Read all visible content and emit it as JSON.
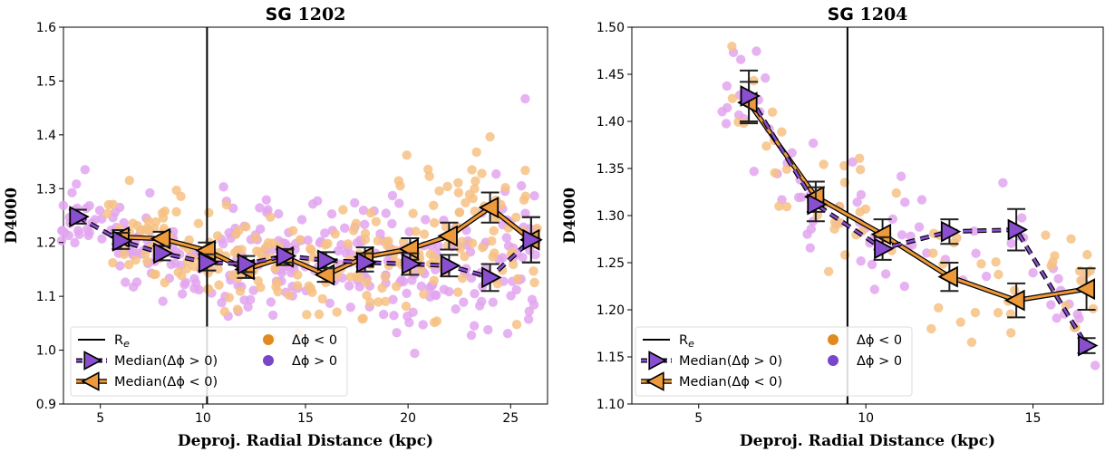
{
  "colors": {
    "pos_scatter": "#e2a4ef",
    "neg_scatter": "#f6c184",
    "pos_median": "#8a4fcf",
    "neg_median": "#ee9a3a",
    "pos_legend_dot": "#7a45c8",
    "neg_legend_dot": "#e08a22",
    "error": "#222222"
  },
  "legend": {
    "re": "R",
    "re_sub": "e",
    "median_pos": "Median(Δϕ  > 0)",
    "median_neg": "Median(Δϕ  < 0)",
    "dot_neg": "Δϕ  < 0",
    "dot_pos": "Δϕ  > 0"
  },
  "chart_data": [
    {
      "type": "scatter",
      "title_prefix": "SG",
      "title_num": "1202",
      "xlabel": "Deproj. Radial Distance (kpc)",
      "ylabel": "D4000",
      "xlim": [
        3.2,
        26.8
      ],
      "ylim": [
        0.9,
        1.6
      ],
      "xticks": [
        5,
        10,
        15,
        20,
        25
      ],
      "yticks": [
        0.9,
        1.0,
        1.1,
        1.2,
        1.3,
        1.4,
        1.5,
        1.6
      ],
      "re": 10.2,
      "median_pos": {
        "x": [
          3.9,
          6.0,
          8.0,
          10.2,
          12.1,
          14.0,
          16.0,
          17.9,
          20.1,
          22.0,
          24.0,
          26.0
        ],
        "y": [
          1.248,
          1.203,
          1.18,
          1.163,
          1.16,
          1.175,
          1.167,
          1.163,
          1.16,
          1.157,
          1.135,
          1.205
        ],
        "err": [
          0.013,
          0.015,
          0.013,
          0.015,
          0.015,
          0.012,
          0.015,
          0.017,
          0.02,
          0.02,
          0.025,
          0.042
        ]
      },
      "median_neg": {
        "x": [
          6.0,
          8.0,
          10.2,
          12.1,
          14.0,
          16.0,
          17.9,
          20.1,
          22.0,
          24.0,
          26.0
        ],
        "y": [
          1.21,
          1.207,
          1.185,
          1.15,
          1.173,
          1.14,
          1.173,
          1.188,
          1.212,
          1.265,
          1.205
        ],
        "err": [
          0.013,
          0.013,
          0.015,
          0.016,
          0.015,
          0.013,
          0.018,
          0.02,
          0.025,
          0.028,
          0.042
        ]
      }
    },
    {
      "type": "scatter",
      "title_prefix": "SG",
      "title_num": "1204",
      "xlabel": "Deproj. Radial Distance (kpc)",
      "ylabel": "D4000",
      "xlim": [
        3.0,
        17.1
      ],
      "ylim": [
        1.1,
        1.5
      ],
      "xticks": [
        5,
        10,
        15
      ],
      "yticks": [
        1.1,
        1.15,
        1.2,
        1.25,
        1.3,
        1.35,
        1.4,
        1.45,
        1.5
      ],
      "re": 9.45,
      "median_pos": {
        "x": [
          6.5,
          8.5,
          10.5,
          12.5,
          14.5,
          16.6
        ],
        "y": [
          1.427,
          1.312,
          1.265,
          1.283,
          1.285,
          1.162
        ],
        "err": [
          0.027,
          0.018,
          0.012,
          0.013,
          0.022,
          0.008
        ]
      },
      "median_neg": {
        "x": [
          6.5,
          8.5,
          10.5,
          12.5,
          14.5,
          16.6
        ],
        "y": [
          1.42,
          1.32,
          1.28,
          1.235,
          1.21,
          1.222
        ],
        "err": [
          0.022,
          0.016,
          0.016,
          0.015,
          0.018,
          0.022
        ]
      }
    }
  ]
}
